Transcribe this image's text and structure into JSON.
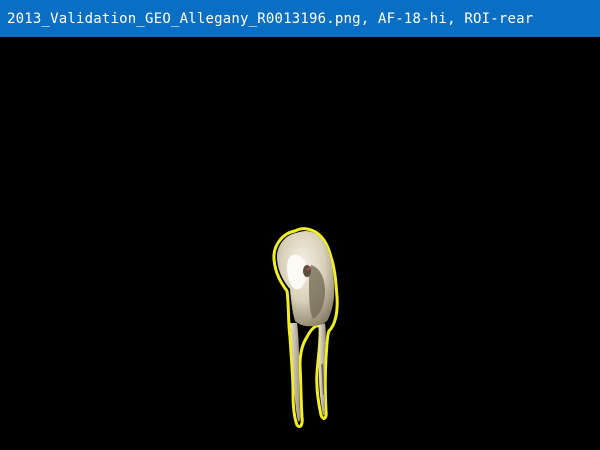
{
  "window": {
    "title": "2013_Validation_GEO_Allegany_R0013196.png, AF-18-hi, ROI-rear"
  },
  "colors": {
    "title_bar": "#0a6fc2",
    "background": "#000000",
    "roi_outline": "#f2ee22"
  },
  "canvas": {
    "subject": "animal-rear-roi"
  }
}
